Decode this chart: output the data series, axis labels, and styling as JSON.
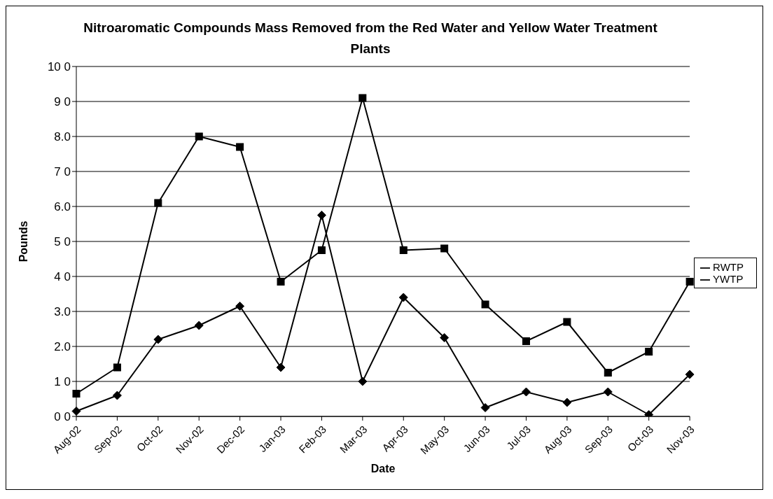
{
  "chart_data": {
    "type": "line",
    "title": "Nitroaromatic Compounds Mass Removed from the Red Water and Yellow Water Treatment Plants",
    "xlabel": "Date",
    "ylabel": "Pounds",
    "categories": [
      "Aug-02",
      "Sep-02",
      "Oct-02",
      "Nov-02",
      "Dec-02",
      "Jan-03",
      "Feb-03",
      "Mar-03",
      "Apr-03",
      "May-03",
      "Jun-03",
      "Jul-03",
      "Aug-03",
      "Sep-03",
      "Oct-03",
      "Nov-03"
    ],
    "series": [
      {
        "name": "RWTP",
        "color": "#000000",
        "marker": "diamond",
        "values": [
          0.15,
          0.6,
          2.2,
          2.6,
          3.15,
          1.4,
          5.75,
          1.0,
          3.4,
          2.25,
          0.25,
          0.7,
          0.4,
          0.7,
          0.05,
          1.2
        ]
      },
      {
        "name": "YWTP",
        "color": "#000000",
        "marker": "square",
        "values": [
          0.65,
          1.4,
          6.1,
          8.0,
          7.7,
          3.85,
          4.75,
          9.1,
          4.75,
          4.8,
          3.2,
          2.15,
          2.7,
          1.25,
          1.85,
          3.85
        ]
      }
    ],
    "ylim": [
      0,
      10
    ],
    "yticks": [
      {
        "value": 0,
        "label": "0 0"
      },
      {
        "value": 1,
        "label": "1 0"
      },
      {
        "value": 2,
        "label": "2.0"
      },
      {
        "value": 3,
        "label": "3.0"
      },
      {
        "value": 4,
        "label": "4 0"
      },
      {
        "value": 5,
        "label": "5 0"
      },
      {
        "value": 6,
        "label": "6.0"
      },
      {
        "value": 7,
        "label": "7 0"
      },
      {
        "value": 8,
        "label": "8.0"
      },
      {
        "value": 9,
        "label": "9 0"
      },
      {
        "value": 10,
        "label": "10 0"
      }
    ],
    "grid": "y",
    "legend": "right",
    "line_style": "solid"
  }
}
